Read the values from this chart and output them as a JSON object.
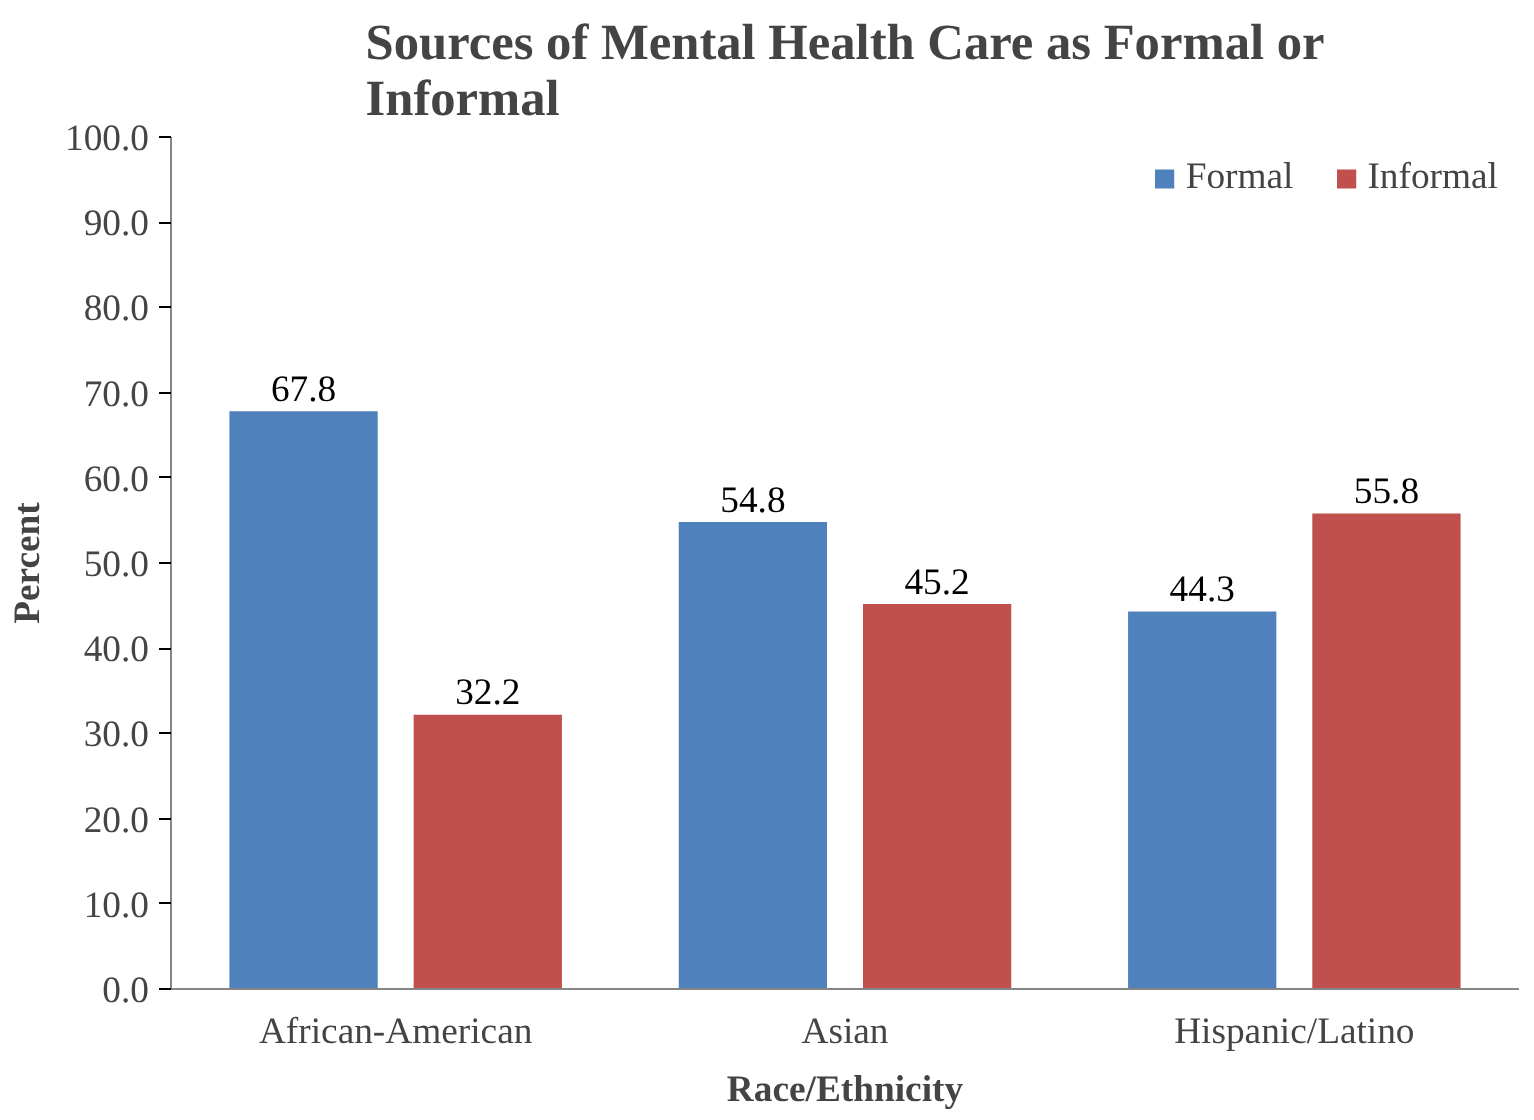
{
  "chart_data": {
    "type": "bar",
    "title": "Sources of Mental Health Care as Formal or\nInformal",
    "xlabel": "Race/Ethnicity",
    "ylabel": "Percent",
    "categories": [
      "African-American",
      "Asian",
      "Hispanic/Latino"
    ],
    "series": [
      {
        "name": "Formal",
        "color": "#4f81bd",
        "values": [
          67.8,
          54.8,
          44.3
        ]
      },
      {
        "name": "Informal",
        "color": "#c0504d",
        "values": [
          32.2,
          45.2,
          55.8
        ]
      }
    ],
    "ylim": [
      0,
      100
    ],
    "yticks": [
      {
        "value": 0,
        "label": "0.0"
      },
      {
        "value": 10,
        "label": "10.0"
      },
      {
        "value": 20,
        "label": "20.0"
      },
      {
        "value": 30,
        "label": "30.0"
      },
      {
        "value": 40,
        "label": "40.0"
      },
      {
        "value": 50,
        "label": "50.0"
      },
      {
        "value": 60,
        "label": "60.0"
      },
      {
        "value": 70,
        "label": "70.0"
      },
      {
        "value": 80,
        "label": "80.0"
      },
      {
        "value": 90,
        "label": "90.0"
      },
      {
        "value": 100,
        "label": "100.0"
      }
    ],
    "data_labels": true,
    "grid": false,
    "legend": "top right"
  }
}
